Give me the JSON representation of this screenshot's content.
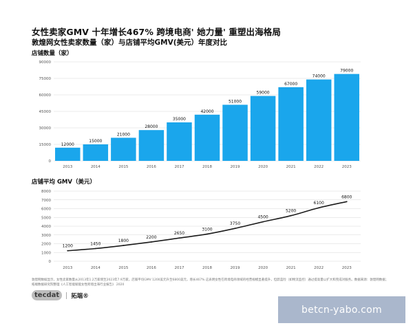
{
  "header": {
    "title": "女性卖家GMV 十年增长467%  跨境电商' 她力量' 重塑出海格局",
    "subtitle": "敦煌网女性卖家数量（家）与店铺平均GMV(美元）年度对比"
  },
  "colors": {
    "bar": "#1aa6ec",
    "line": "#1a1a1a",
    "grid": "#d7d7d7",
    "axis_text": "#555555",
    "label_text": "#111111"
  },
  "chart_data": [
    {
      "type": "bar",
      "label": "店铺数量（家）",
      "categories": [
        "2013",
        "2014",
        "2015",
        "2016",
        "2017",
        "2018",
        "2019",
        "2020",
        "2021",
        "2022",
        "2023"
      ],
      "values": [
        12000,
        15000,
        21000,
        28000,
        35000,
        42000,
        51000,
        59000,
        67000,
        74000,
        79000
      ],
      "ylim": [
        0,
        90000
      ],
      "yticks": [
        0,
        15000,
        30000,
        45000,
        60000,
        75000,
        90000
      ],
      "grid": true
    },
    {
      "type": "line",
      "label": "店铺平均 GMV（美元）",
      "categories": [
        "2013",
        "2014",
        "2015",
        "2016",
        "2017",
        "2018",
        "2019",
        "2020",
        "2021",
        "2022",
        "2023"
      ],
      "values": [
        1200,
        1450,
        1800,
        2200,
        2650,
        3100,
        3750,
        4500,
        5200,
        6100,
        6800
      ],
      "ylim": [
        0,
        8000
      ],
      "yticks": [
        0,
        1000,
        2000,
        3000,
        4000,
        5000,
        6000,
        7000,
        8000
      ],
      "grid": true
    }
  ],
  "footnote": "敦煌网数据显示，女性卖家数量从2013年1.2万家增至2023年7.9万家，店铺平均GMV 1200美元升至6800美元，增长467%  这表明女性在跨境电商领域的经营规模显著提升，但蔚蓝险（如物流监控）通过提高量以扩大和完成对服务。数据来源：敦煌网数据；拓端数据研究院整理《人工智能赋能女性跨境出海行业报告》 2020",
  "logo": {
    "mark": "tecdat",
    "cn": "拓端®"
  },
  "watermark": "betcn-yabo.com"
}
